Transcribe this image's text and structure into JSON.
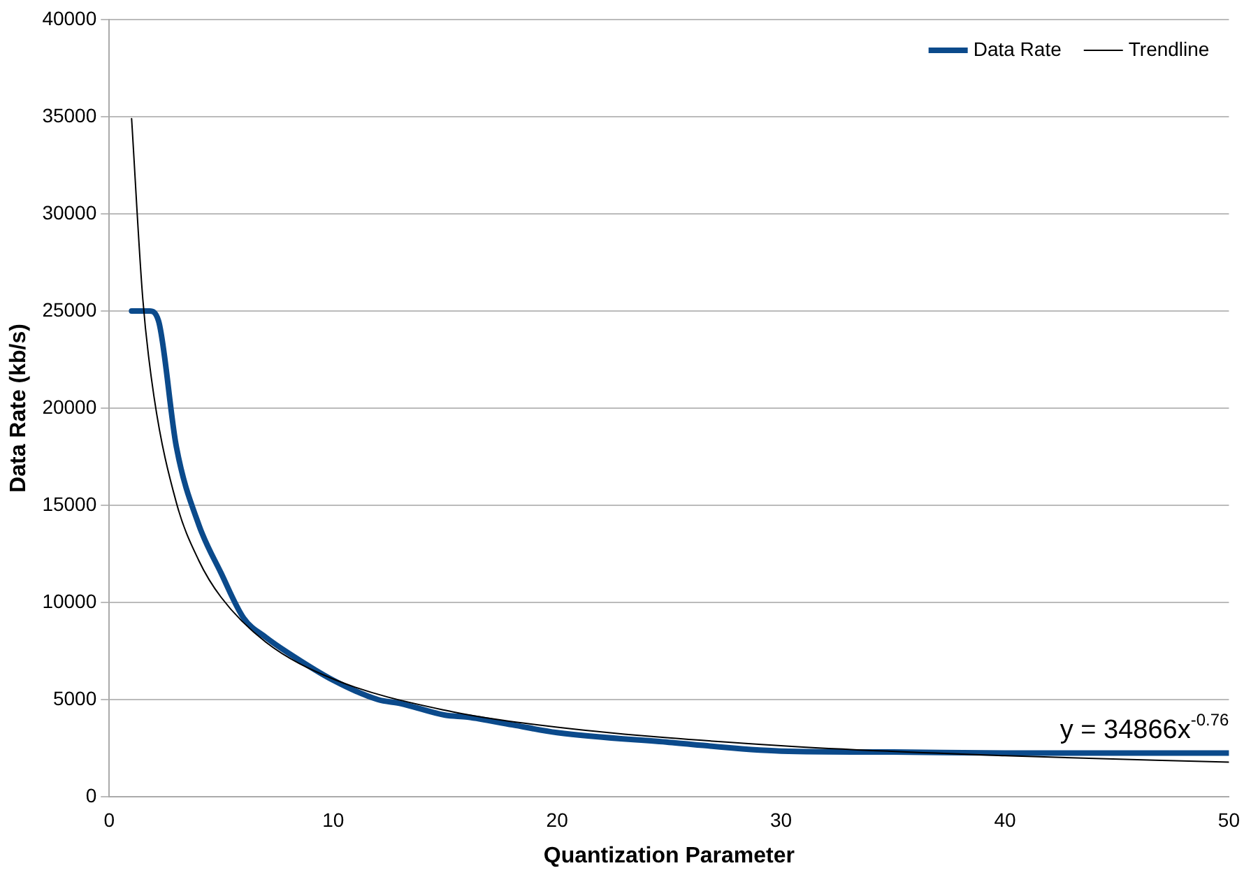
{
  "chart_data": {
    "type": "line",
    "xlabel": "Quantization Parameter",
    "ylabel": "Data Rate (kb/s)",
    "xlim": [
      0,
      50
    ],
    "xticks": [
      0,
      10,
      20,
      30,
      40,
      50
    ],
    "ylim": [
      0,
      40000
    ],
    "yticks": [
      0,
      5000,
      10000,
      15000,
      20000,
      25000,
      30000,
      35000,
      40000
    ],
    "grid": "y",
    "legend": "top right",
    "marker": "none",
    "series": [
      {
        "name": "Data Rate",
        "color": "#0b4a8b",
        "x": [
          1,
          1.8,
          2.2,
          3,
          4,
          5,
          6,
          7,
          8,
          10,
          12,
          13,
          15,
          16,
          18,
          20,
          25,
          30,
          35,
          40,
          45,
          50
        ],
        "values": [
          25000,
          25000,
          24500,
          18000,
          14000,
          11500,
          9200,
          8200,
          7400,
          6000,
          5000,
          4800,
          4200,
          4100,
          3700,
          3300,
          2800,
          2350,
          2300,
          2250,
          2250,
          2250
        ]
      },
      {
        "name": "Trendline",
        "color": "#000000",
        "x": [
          1,
          1.5,
          2,
          3,
          4,
          5,
          7,
          10,
          15,
          20,
          30,
          40,
          50
        ],
        "values": [
          34900,
          25620,
          20590,
          15130,
          12160,
          10260,
          7950,
          6060,
          4450,
          3580,
          2630,
          2110,
          1780
        ]
      }
    ],
    "annotations": [
      "y = 34866x$^{-0.76}$"
    ]
  }
}
